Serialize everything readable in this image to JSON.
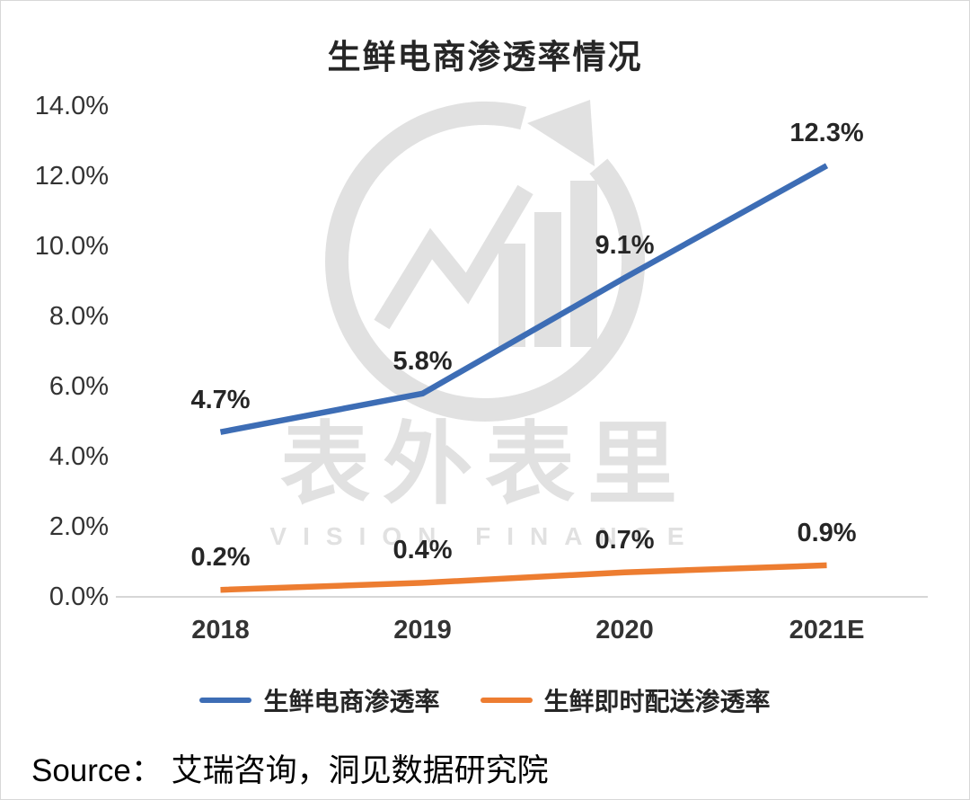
{
  "chart_data": {
    "type": "line",
    "title": "生鲜电商渗透率情况",
    "categories": [
      "2018",
      "2019",
      "2020",
      "2021E"
    ],
    "series": [
      {
        "name": "生鲜电商渗透率",
        "color": "#3D6DB5",
        "values": [
          4.7,
          5.8,
          9.1,
          12.3
        ],
        "labels": [
          "4.7%",
          "5.8%",
          "9.1%",
          "12.3%"
        ]
      },
      {
        "name": "生鲜即时配送渗透率",
        "color": "#ED7D31",
        "values": [
          0.2,
          0.4,
          0.7,
          0.9
        ],
        "labels": [
          "0.2%",
          "0.4%",
          "0.7%",
          "0.9%"
        ]
      }
    ],
    "ylim": [
      0,
      14
    ],
    "ytick_step": 2,
    "ytick_labels": [
      "0.0%",
      "2.0%",
      "4.0%",
      "6.0%",
      "8.0%",
      "10.0%",
      "12.0%",
      "14.0%"
    ],
    "grid": false,
    "legend_position": "bottom",
    "axis_line_color": "#D6D6D6"
  },
  "watermark": {
    "text": "表外表里",
    "subtext": "VISION FINANCE"
  },
  "source_note": "Source： 艾瑞咨询，洞见数据研究院"
}
